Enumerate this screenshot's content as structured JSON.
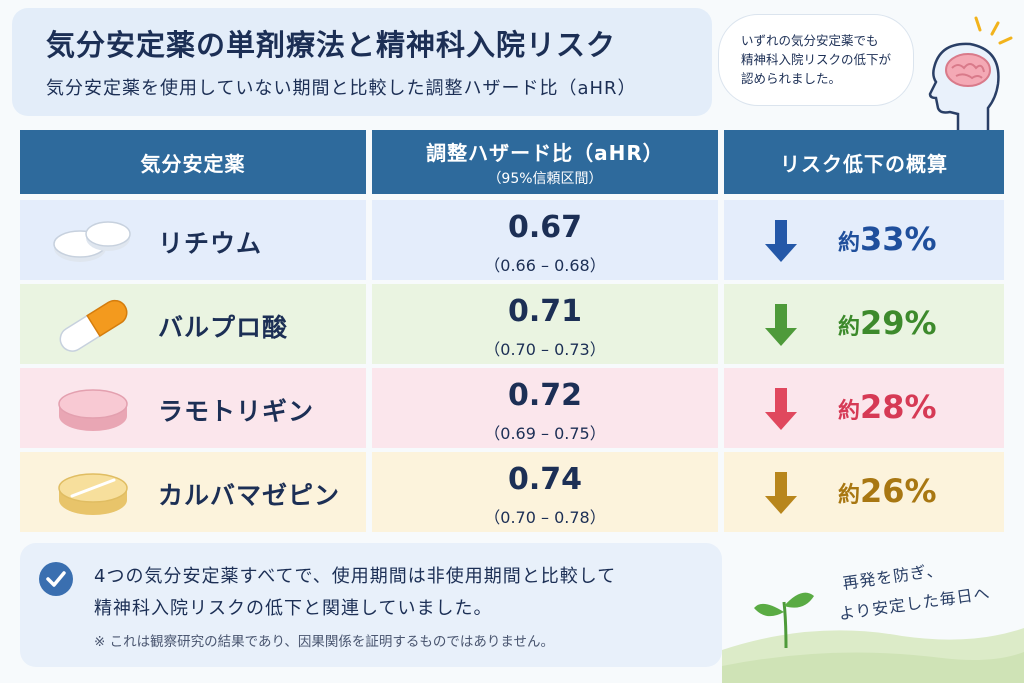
{
  "header": {
    "title": "気分安定薬の単剤療法と精神科入院リスク",
    "subtitle": "気分安定薬を使用していない期間と比較した調整ハザード比（aHR）"
  },
  "bubble": {
    "line1": "いずれの気分安定薬でも",
    "line2": "精神科入院リスクの低下が",
    "line3": "認められました。"
  },
  "table": {
    "headers": {
      "drug": "気分安定薬",
      "hr": "調整ハザード比（aHR）",
      "hr_sub": "（95%信頼区間）",
      "reduction": "リスク低下の概算"
    },
    "rows": [
      {
        "name": "リチウム",
        "hr": "0.67",
        "ci": "（0.66 – 0.68）",
        "prefix": "約",
        "reduction": "33%",
        "arrow_color": "#2458a8",
        "text_color": "#1f4f9c",
        "bg": "#e4edfb",
        "pill_icon": "white-tablets-icon"
      },
      {
        "name": "バルプロ酸",
        "hr": "0.71",
        "ci": "（0.70 – 0.73）",
        "prefix": "約",
        "reduction": "29%",
        "arrow_color": "#4e9a3a",
        "text_color": "#3d8a2c",
        "bg": "#eaf4e1",
        "pill_icon": "orange-capsule-icon"
      },
      {
        "name": "ラモトリギン",
        "hr": "0.72",
        "ci": "（0.69 – 0.75）",
        "prefix": "約",
        "reduction": "28%",
        "arrow_color": "#e0485e",
        "text_color": "#d63a55",
        "bg": "#fbe6ec",
        "pill_icon": "pink-tablet-icon"
      },
      {
        "name": "カルバマゼピン",
        "hr": "0.74",
        "ci": "（0.70 – 0.78）",
        "prefix": "約",
        "reduction": "26%",
        "arrow_color": "#b8861c",
        "text_color": "#a87712",
        "bg": "#fcf3dc",
        "pill_icon": "yellow-scored-tablet-icon"
      }
    ]
  },
  "footer": {
    "line1": "4つの気分安定薬すべてで、使用期間は非使用期間と比較して",
    "line2": "精神科入院リスクの低下と関連していました。",
    "note": "※ これは観察研究の結果であり、因果関係を証明するものではありません。"
  },
  "slogan": {
    "line1": "再発を防ぎ、",
    "line2": "より安定した毎日へ"
  },
  "colors": {
    "header_bg": "#2e6a9c",
    "title": "#1c2f55"
  }
}
